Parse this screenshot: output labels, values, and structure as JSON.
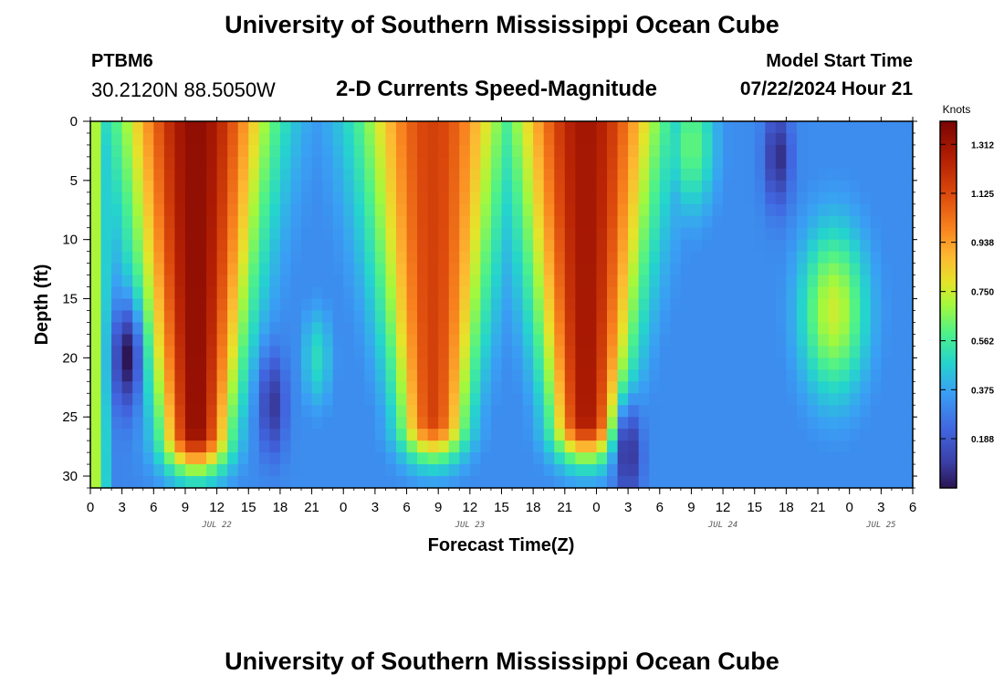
{
  "header": {
    "title": "University of Southern Mississippi Ocean Cube",
    "station_id": "PTBM6",
    "coordinates": "30.2120N  88.5050W",
    "subtitle": "2-D Currents Speed-Magnitude",
    "model_start_label": "Model Start Time",
    "model_start_value": "07/22/2024 Hour 21"
  },
  "footer": {
    "title": "University of Southern Mississippi Ocean Cube"
  },
  "chart_data": {
    "type": "heatmap",
    "title": "2-D Currents Speed-Magnitude",
    "xlabel": "Forecast Time(Z)",
    "ylabel": "Depth (ft)",
    "x_range_hours": [
      0,
      78
    ],
    "ylim": [
      0,
      31
    ],
    "y_inverted": true,
    "x_tick_labels": [
      "0",
      "3",
      "6",
      "9",
      "12",
      "15",
      "18",
      "21",
      "0",
      "3",
      "6",
      "9",
      "12",
      "15",
      "18",
      "21",
      "0",
      "3",
      "6",
      "9",
      "12",
      "15",
      "18",
      "21",
      "0",
      "3",
      "6"
    ],
    "y_ticks": [
      0,
      5,
      10,
      15,
      20,
      25,
      30
    ],
    "day_labels": [
      {
        "text": "JUL 22",
        "hour": 12
      },
      {
        "text": "JUL 23",
        "hour": 36
      },
      {
        "text": "JUL 24",
        "hour": 60
      },
      {
        "text": "JUL 25",
        "hour": 75
      }
    ],
    "colorbar": {
      "unit": "Knots",
      "min": 0,
      "max": 1.4,
      "tick_labels": [
        "1.312",
        "1.125",
        "0.938",
        "0.750",
        "0.562",
        "0.375",
        "0.188"
      ],
      "tick_values": [
        1.312,
        1.125,
        0.938,
        0.75,
        0.562,
        0.375,
        0.188
      ]
    },
    "features": [
      {
        "hour": 0.3,
        "depth_top": 0,
        "depth_bottom": 31,
        "speed": 0.72,
        "kind": "band"
      },
      {
        "hour": 3.5,
        "depth_top": 0,
        "depth_bottom": 31,
        "speed": 0.25,
        "kind": "band"
      },
      {
        "hour": 10,
        "depth_top": 0,
        "depth_bottom": 26,
        "speed": 1.35,
        "kind": "surface_jet"
      },
      {
        "hour": 32.5,
        "depth_top": 0,
        "depth_bottom": 25,
        "speed": 1.15,
        "kind": "surface_jet"
      },
      {
        "hour": 47,
        "depth_top": 0,
        "depth_bottom": 25,
        "speed": 1.3,
        "kind": "surface_jet"
      },
      {
        "hour": 70.5,
        "depth_top": 9,
        "depth_bottom": 23,
        "speed": 0.75,
        "kind": "subsurface_peak"
      },
      {
        "hour": 57,
        "depth_top": 0,
        "depth_bottom": 8,
        "speed": 0.62,
        "kind": "surface_patch"
      },
      {
        "hour": 3.5,
        "depth": 20,
        "speed": 0.0,
        "kind": "minimum"
      },
      {
        "hour": 17.3,
        "depth": 24,
        "speed": 0.08,
        "kind": "minimum"
      },
      {
        "hour": 65.2,
        "depth": 3,
        "speed": 0.05,
        "kind": "minimum"
      },
      {
        "hour": 51,
        "depth": 28,
        "speed": 0.05,
        "kind": "minimum"
      },
      {
        "hour": 21.5,
        "depth": 20,
        "speed": 0.5,
        "kind": "local_peak"
      }
    ]
  }
}
